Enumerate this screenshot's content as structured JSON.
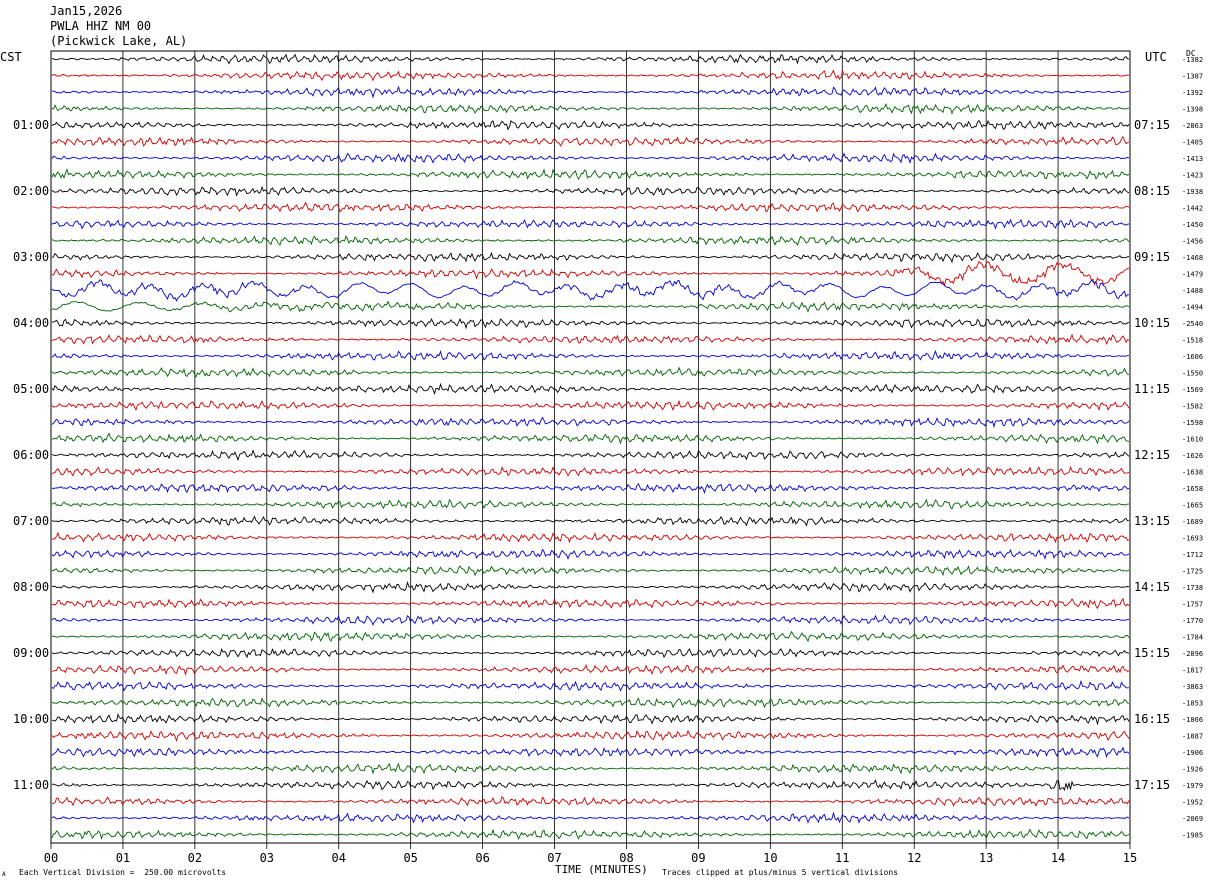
{
  "header": {
    "date": "Jan15,2026",
    "station": "PWLA HHZ NM 00",
    "location": "(Pickwick Lake, AL)"
  },
  "left_tz": "CST",
  "right_tz": "UTC",
  "dc_label": "DC",
  "footer": {
    "division_note": "Each Vertical Division =  250.00 microvolts",
    "clip_note": "Traces clipped at plus/minus 5 vertical divisions",
    "corner_mark": "A"
  },
  "colors": {
    "trace_cycle": [
      "#000000",
      "#d40000",
      "#0000d4",
      "#006400"
    ],
    "grid": "#000000"
  },
  "chart_data": {
    "type": "line",
    "title": "Jan15,2026  PWLA HHZ NM 00  (Pickwick Lake, AL)",
    "xlabel": "TIME (MINUTES)",
    "ylabel": "",
    "xlim": [
      0,
      15
    ],
    "x_ticks": [
      "00",
      "01",
      "02",
      "03",
      "04",
      "05",
      "06",
      "07",
      "08",
      "09",
      "10",
      "11",
      "12",
      "13",
      "14",
      "15"
    ],
    "left_hour_labels": [
      "01:00",
      "02:00",
      "03:00",
      "04:00",
      "05:00",
      "06:00",
      "07:00",
      "08:00",
      "09:00",
      "10:00",
      "11:00"
    ],
    "right_hour_labels": [
      "07:15",
      "08:15",
      "09:15",
      "10:15",
      "11:15",
      "12:15",
      "13:15",
      "14:15",
      "15:15",
      "16:15",
      "17:15"
    ],
    "trace_count": 48,
    "dc_offsets": [
      "-1382",
      "-1387",
      "-1392",
      "-1398",
      "-2863",
      "-1405",
      "-1413",
      "-1423",
      "-1938",
      "-1442",
      "-1450",
      "-1456",
      "-1468",
      "-1479",
      "-1488",
      "-1494",
      "-2540",
      "-1518",
      "-1606",
      "-1550",
      "-1569",
      "-1582",
      "-1598",
      "-1610",
      "-1626",
      "-1638",
      "-1658",
      "-1665",
      "-1689",
      "-1693",
      "-1712",
      "-1725",
      "-1738",
      "-1757",
      "-1770",
      "-1784",
      "-2896",
      "-1817",
      "-3863",
      "-1853",
      "-1866",
      "-1887",
      "-1906",
      "-1926",
      "-1979",
      "-1952",
      "-2069",
      "-1985"
    ],
    "events": [
      {
        "trace": 13,
        "x_start": 11.6,
        "x_end": 15,
        "note": "elevated amplitude red trace"
      },
      {
        "trace": 14,
        "x_start": 0,
        "x_end": 15,
        "note": "long-period blue trace"
      },
      {
        "trace": 15,
        "x_start": 0,
        "x_end": 6,
        "note": "long-period green trace"
      },
      {
        "trace": 44,
        "x_start": 13.9,
        "x_end": 14.2,
        "note": "burst"
      }
    ],
    "grid": true,
    "units_per_vertical_division_microvolts": 250.0
  }
}
